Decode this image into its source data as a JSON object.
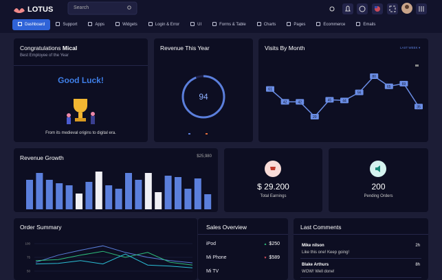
{
  "header": {
    "logo": "LOTUS",
    "search_placeholder": "Search"
  },
  "nav": [
    "Dashboard",
    "Support",
    "Apps",
    "Widgets",
    "Login & Error",
    "UI",
    "Forms & Table",
    "Charts",
    "Pages",
    "Ecommerce",
    "Emails"
  ],
  "congrats": {
    "title": "Congratulations",
    "name": "Mical",
    "subtitle": "Best Employee of the Year",
    "heading": "Good Luck!",
    "caption": "From its medieval origins to digital era."
  },
  "chart_data": [
    {
      "type": "gauge",
      "title": "Revenue This Year",
      "value": 94,
      "color": "#5b7fdc"
    },
    {
      "type": "line",
      "title": "Visits By Month",
      "filter": "LAST WEEK",
      "values": [
        61,
        42,
        42,
        20,
        45,
        44,
        56,
        80,
        65,
        69,
        35
      ],
      "color": "#6b8ee6"
    },
    {
      "type": "bar",
      "title": "Revenue Growth",
      "total": "$25,980",
      "values": [
        43,
        53,
        43,
        38,
        35,
        23,
        40,
        55,
        35,
        30,
        53,
        43,
        53,
        25,
        49,
        47,
        30,
        45,
        22
      ],
      "colors": [
        "#5b7fdc",
        "#5b7fdc",
        "#5b7fdc",
        "#5b7fdc",
        "#5b7fdc",
        "#f0f0f5",
        "#5b7fdc",
        "#f0f0f5",
        "#5b7fdc",
        "#5b7fdc",
        "#5b7fdc",
        "#5b7fdc",
        "#f0f0f5",
        "#f0f0f5",
        "#5b7fdc",
        "#5b7fdc",
        "#5b7fdc",
        "#5b7fdc",
        "#5b7fdc"
      ]
    },
    {
      "type": "line",
      "title": "Order Summary",
      "ylim": [
        0,
        100
      ],
      "yticks": [
        50,
        75,
        100
      ],
      "series": [
        {
          "color": "#5b7fdc",
          "values": [
            66,
            79,
            88,
            96,
            84,
            75,
            69,
            65
          ]
        },
        {
          "color": "#2ec27e",
          "values": [
            69,
            71,
            79,
            86,
            75,
            84,
            66,
            61
          ]
        },
        {
          "color": "#2bc0d8",
          "values": [
            63,
            64,
            69,
            63,
            81,
            61,
            59,
            56
          ]
        }
      ]
    }
  ],
  "stats": [
    {
      "value": "$ 29.200",
      "label": "Total Earnings"
    },
    {
      "value": 200,
      "label": "Pending Orders"
    }
  ],
  "sales": {
    "title": "Sales Overview",
    "items": [
      {
        "name": "iPod",
        "amount": "$250",
        "trend": "up"
      },
      {
        "name": "Mi Phone",
        "amount": "$589",
        "trend": "down"
      },
      {
        "name": "Mi TV"
      }
    ]
  },
  "comments": {
    "title": "Last Comments",
    "items": [
      {
        "name": "Mike nilson",
        "time": "2h",
        "text": "Like this one! Keep going!"
      },
      {
        "name": "Blake Arthurs",
        "time": "8h",
        "text": "WOW! Well done!"
      }
    ]
  }
}
